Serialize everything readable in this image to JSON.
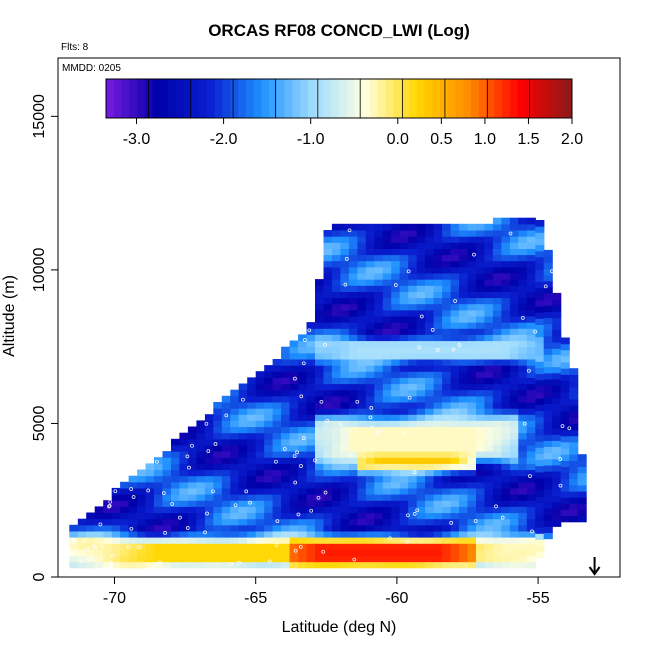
{
  "chart_data": {
    "type": "heatmap",
    "title": "ORCAS RF08 CONCD_LWI (Log)",
    "notes": {
      "flights": "Flts: 8",
      "date": "MMDD: 0205"
    },
    "xlabel": "Latitude (deg N)",
    "ylabel": "Altitude (m)",
    "xlim": [
      -72,
      -52.1
    ],
    "ylim": [
      0,
      16900
    ],
    "x_ticks": [
      -70,
      -65,
      -60,
      -55
    ],
    "y_ticks": [
      0,
      5000,
      10000,
      15000
    ],
    "colorbar": {
      "range": [
        -3.35,
        2.0
      ],
      "ticks": [
        -3.0,
        -2.0,
        -1.0,
        0.0,
        0.5,
        1.0,
        1.5,
        2.0
      ],
      "tick_labels": [
        "-3.0",
        "-2.0",
        "-1.0",
        "0.0",
        "0.5",
        "1.0",
        "1.5",
        "2.0"
      ],
      "colors": [
        "#7a1be0",
        "#0000a8",
        "#0a1fd0",
        "#1e90ff",
        "#9fdcff",
        "#ffffe0",
        "#ffd700",
        "#ff8c00",
        "#ff0000",
        "#8b1a1a"
      ]
    },
    "envelope": [
      [
        -71.6,
        300,
        1400
      ],
      [
        -71.0,
        300,
        1800
      ],
      [
        -70.5,
        300,
        2200
      ],
      [
        -70.0,
        300,
        2800
      ],
      [
        -69.0,
        300,
        3400
      ],
      [
        -68.0,
        300,
        4200
      ],
      [
        -67.0,
        300,
        5000
      ],
      [
        -66.0,
        300,
        5800
      ],
      [
        -65.0,
        300,
        6500
      ],
      [
        -64.0,
        300,
        7300
      ],
      [
        -63.0,
        300,
        8200
      ],
      [
        -62.4,
        300,
        11400
      ],
      [
        -58.0,
        300,
        11400
      ],
      [
        -56.5,
        300,
        11500
      ],
      [
        -55.2,
        300,
        11600
      ],
      [
        -55.0,
        500,
        11600
      ],
      [
        -54.8,
        1000,
        11000
      ],
      [
        -54.5,
        1500,
        10200
      ],
      [
        -54.2,
        1800,
        8000
      ],
      [
        -53.9,
        1800,
        7300
      ],
      [
        -53.6,
        1800,
        6000
      ],
      [
        -53.4,
        1800,
        3200
      ]
    ],
    "features": [
      {
        "x": [
          -71.8,
          -55
        ],
        "y": [
          0,
          1400
        ],
        "value": 0.2
      },
      {
        "x": [
          -64,
          -57.5
        ],
        "y": [
          200,
          1200
        ],
        "value": 1.3
      },
      {
        "x": [
          -61.5,
          -57.5
        ],
        "y": [
          3200,
          4700
        ],
        "value": 0.9
      },
      {
        "x": [
          -63,
          -56
        ],
        "y": [
          3400,
          5400
        ],
        "value": -0.3
      },
      {
        "x": [
          -63,
          -55
        ],
        "y": [
          6800,
          7800
        ],
        "value": -0.9
      }
    ],
    "arrow_at_lat": -53.0
  }
}
